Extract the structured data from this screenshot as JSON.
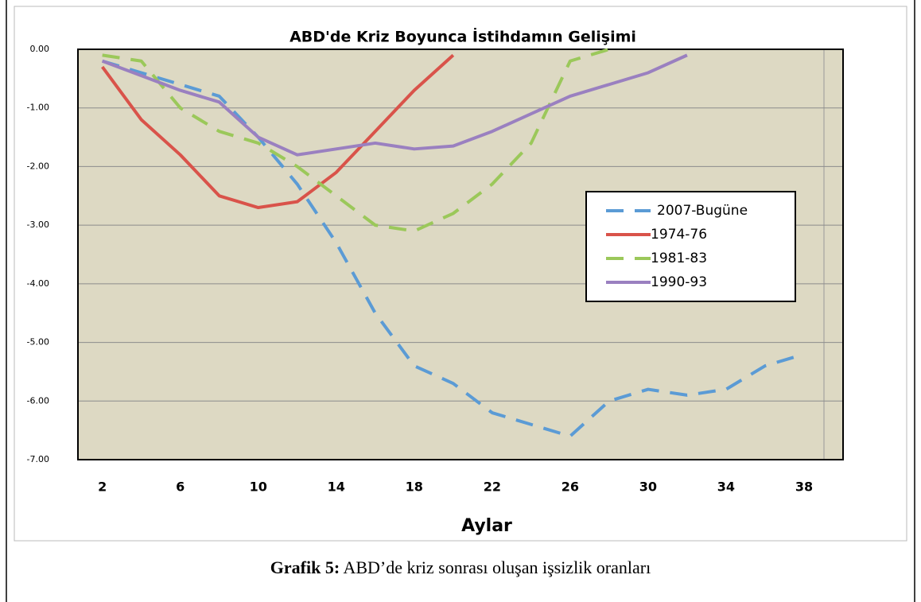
{
  "chart_data": {
    "type": "line",
    "title": "ABD'de Kriz Boyunca İstihdamın Gelişimi",
    "x_label": "Aylar",
    "x": [
      2,
      4,
      6,
      8,
      10,
      12,
      14,
      16,
      18,
      20,
      22,
      24,
      26,
      28,
      30,
      32,
      34,
      36,
      38
    ],
    "xlim": [
      0.75,
      40
    ],
    "xticks": [
      2,
      6,
      10,
      14,
      18,
      22,
      26,
      30,
      34,
      38
    ],
    "ylim": [
      -7,
      0
    ],
    "yticks": [
      {
        "value": 0,
        "label": "0.00"
      },
      {
        "value": -1,
        "label": "-1.00"
      },
      {
        "value": -2,
        "label": "-2.00"
      },
      {
        "value": -3,
        "label": "-3.00"
      },
      {
        "value": -4,
        "label": "-4.00"
      },
      {
        "value": -5,
        "label": "-5.00"
      },
      {
        "value": -6,
        "label": "-6.00"
      },
      {
        "value": -7,
        "label": "-7.00"
      }
    ],
    "grid": true,
    "legend": "right",
    "series": [
      {
        "name": "2007-Bugüne",
        "color": "#5b9bd5",
        "line_style": "dashed",
        "values": [
          -0.2,
          -0.4,
          -0.6,
          -0.8,
          -1.5,
          -2.3,
          -3.3,
          -4.5,
          -5.4,
          -5.7,
          -6.2,
          -6.4,
          -6.6,
          -6.0,
          -5.8,
          -5.9,
          -5.8,
          -5.4,
          -5.2
        ]
      },
      {
        "name": "1974-76",
        "color": "#d9534a",
        "line_style": "solid",
        "values": [
          -0.3,
          -1.2,
          -1.8,
          -2.5,
          -2.7,
          -2.6,
          -2.1,
          -1.4,
          -0.7,
          -0.1,
          null,
          null,
          null,
          null,
          null,
          null,
          null,
          null,
          null
        ]
      },
      {
        "name": "1981-83",
        "color": "#9bc85a",
        "line_style": "dashed",
        "values": [
          -0.1,
          -0.2,
          -1.0,
          -1.4,
          -1.6,
          -2.0,
          -2.5,
          -3.0,
          -3.1,
          -2.8,
          -2.3,
          -1.6,
          -0.2,
          0.0,
          null,
          null,
          null,
          null,
          null
        ]
      },
      {
        "name": "1990-93",
        "color": "#9a80c0",
        "line_style": "solid",
        "values": [
          -0.2,
          -0.45,
          -0.7,
          -0.9,
          -1.5,
          -1.8,
          -1.7,
          -1.6,
          -1.7,
          -1.65,
          -1.4,
          -1.1,
          -0.8,
          -0.6,
          -0.4,
          -0.1,
          null,
          null,
          null
        ]
      }
    ]
  },
  "caption": {
    "label": "Grafik 5:",
    "text": "ABD’de kriz sonrası oluşan işsizlik oranları"
  }
}
